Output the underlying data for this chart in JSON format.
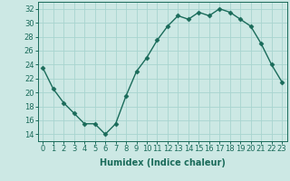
{
  "x": [
    0,
    1,
    2,
    3,
    4,
    5,
    6,
    7,
    8,
    9,
    10,
    11,
    12,
    13,
    14,
    15,
    16,
    17,
    18,
    19,
    20,
    21,
    22,
    23
  ],
  "y": [
    23.5,
    20.5,
    18.5,
    17.0,
    15.5,
    15.5,
    14.0,
    15.5,
    19.5,
    23.0,
    25.0,
    27.5,
    29.5,
    31.0,
    30.5,
    31.5,
    31.0,
    32.0,
    31.5,
    30.5,
    29.5,
    27.0,
    24.0,
    21.5
  ],
  "xlabel": "Humidex (Indice chaleur)",
  "ylabel": "",
  "ylim": [
    13,
    33
  ],
  "xlim": [
    -0.5,
    23.5
  ],
  "yticks": [
    14,
    16,
    18,
    20,
    22,
    24,
    26,
    28,
    30,
    32
  ],
  "xticks": [
    0,
    1,
    2,
    3,
    4,
    5,
    6,
    7,
    8,
    9,
    10,
    11,
    12,
    13,
    14,
    15,
    16,
    17,
    18,
    19,
    20,
    21,
    22,
    23
  ],
  "line_color": "#1a6b5a",
  "marker": "D",
  "marker_size": 2.5,
  "bg_color": "#cce8e4",
  "grid_color": "#a8d4cf",
  "label_fontsize": 7.0,
  "tick_fontsize": 6.0
}
